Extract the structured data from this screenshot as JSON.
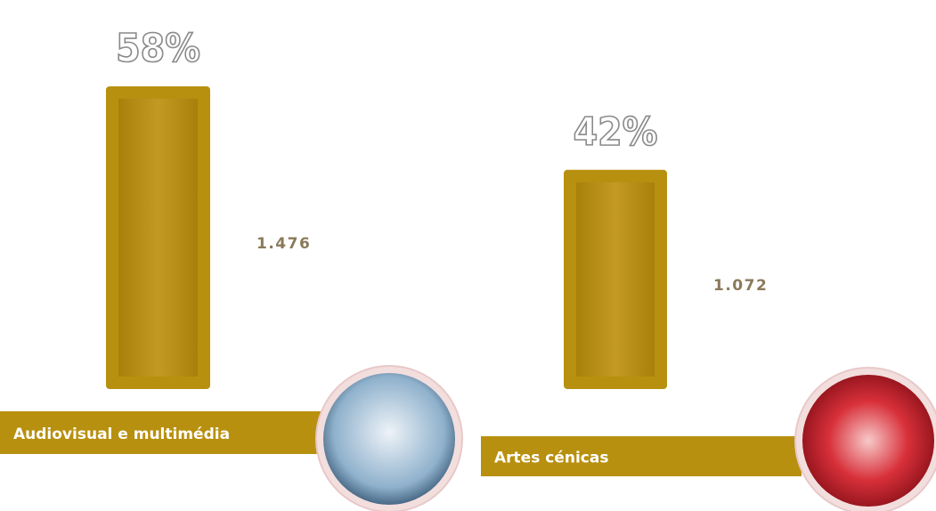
{
  "chart_data": {
    "type": "bar",
    "categories": [
      "Audiovisual e multimédia",
      "Artes cénicas"
    ],
    "values": [
      58,
      42
    ],
    "value_labels": [
      "58%",
      "42%"
    ],
    "totals": [
      1476,
      1072
    ],
    "total_labels": [
      "1.476",
      "1.072"
    ],
    "color": "#b8900f"
  }
}
